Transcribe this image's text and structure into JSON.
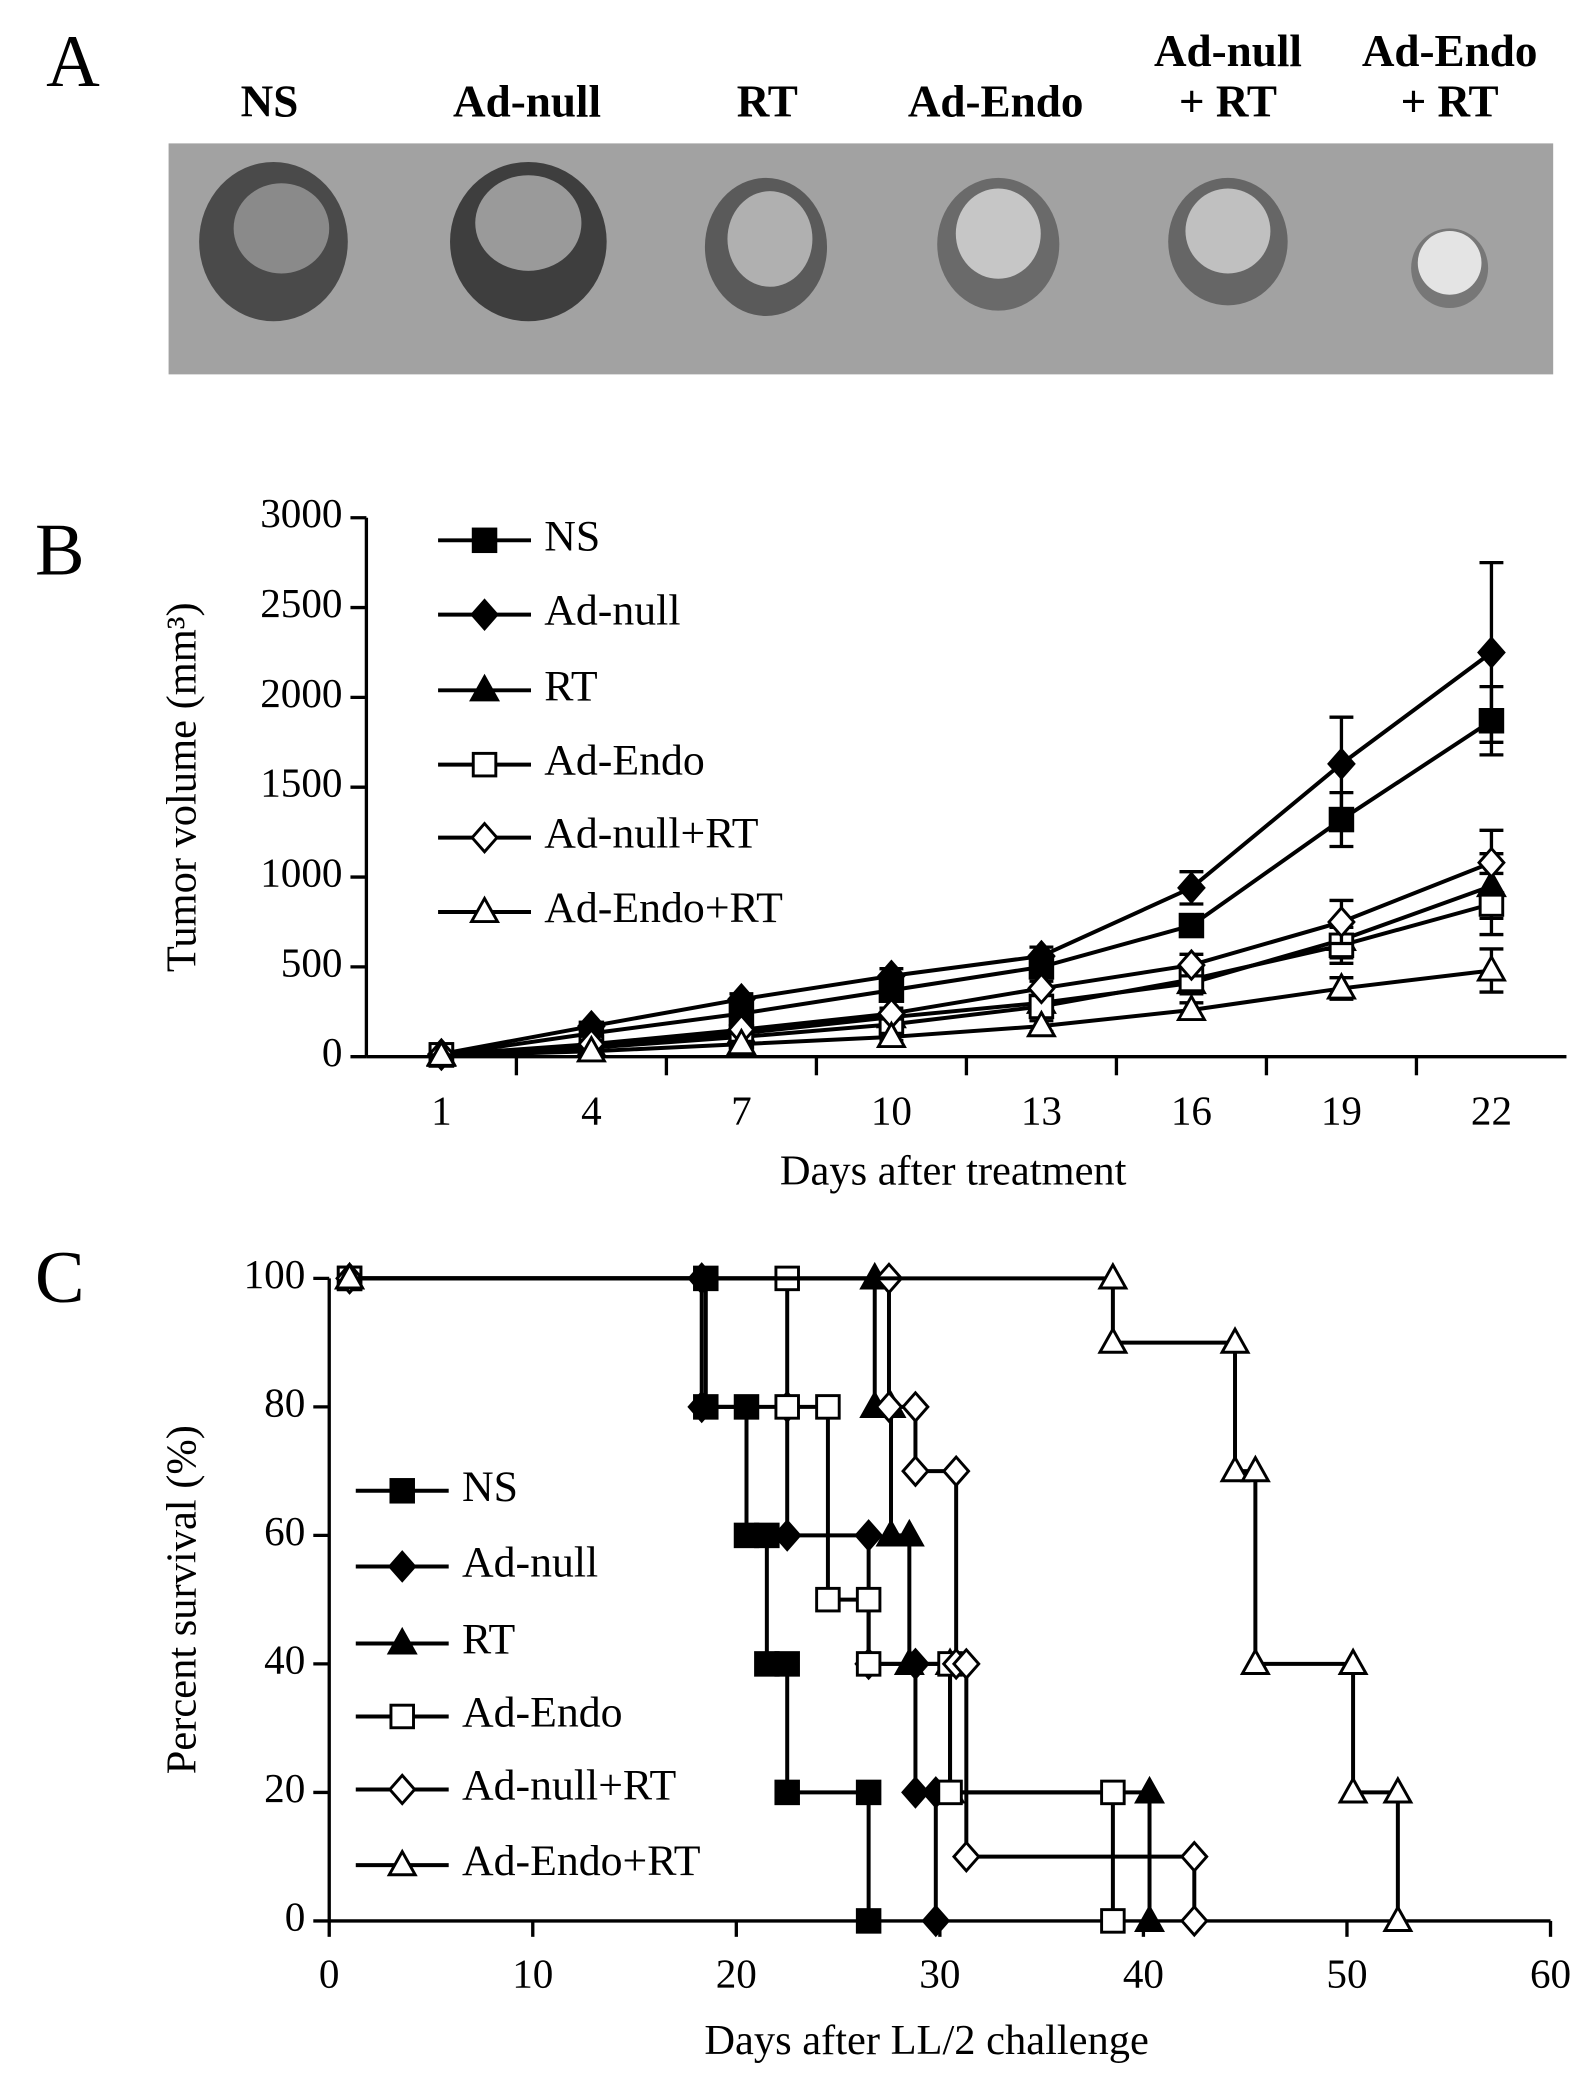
{
  "panel_a": {
    "label": "A",
    "groups": [
      [
        "NS"
      ],
      [
        "Ad-null"
      ],
      [
        "RT"
      ],
      [
        "Ad-Endo"
      ],
      [
        "Ad-null",
        "+ RT"
      ],
      [
        "Ad-Endo",
        "+ RT"
      ]
    ]
  },
  "chart_data": [
    {
      "type": "line",
      "panel_label": "B",
      "ylabel": "Tumor volume (mm³)",
      "xlabel": "Days after treatment",
      "categories": [
        1,
        4,
        7,
        10,
        13,
        16,
        19,
        22
      ],
      "ylim": [
        0,
        3000
      ],
      "yticks": [
        0,
        500,
        1000,
        1500,
        2000,
        2500,
        3000
      ],
      "series": [
        {
          "name": "NS",
          "color": "#000000",
          "marker": "square",
          "filled": true,
          "values": [
            10,
            130,
            240,
            370,
            500,
            730,
            1320,
            1870
          ],
          "errors": [
            10,
            20,
            30,
            40,
            50,
            60,
            150,
            190
          ]
        },
        {
          "name": "Ad-null",
          "color": "#000000",
          "marker": "diamond",
          "filled": true,
          "values": [
            15,
            170,
            320,
            450,
            560,
            940,
            1630,
            2250
          ],
          "errors": [
            10,
            20,
            30,
            40,
            50,
            90,
            260,
            500
          ]
        },
        {
          "name": "RT",
          "color": "#000000",
          "marker": "triangle",
          "filled": true,
          "values": [
            10,
            60,
            130,
            220,
            300,
            410,
            650,
            950
          ],
          "errors": [
            5,
            10,
            20,
            30,
            40,
            60,
            100,
            180
          ]
        },
        {
          "name": "Ad-Endo",
          "color": "#000000",
          "marker": "square",
          "filled": false,
          "values": [
            10,
            50,
            110,
            180,
            280,
            430,
            620,
            850
          ],
          "errors": [
            5,
            10,
            20,
            30,
            40,
            60,
            100,
            170
          ]
        },
        {
          "name": "Ad-null+RT",
          "color": "#000000",
          "marker": "diamond",
          "filled": false,
          "values": [
            10,
            70,
            150,
            240,
            380,
            510,
            750,
            1080
          ],
          "errors": [
            5,
            10,
            20,
            30,
            40,
            60,
            120,
            180
          ]
        },
        {
          "name": "Ad-Endo+RT",
          "color": "#000000",
          "marker": "triangle",
          "filled": false,
          "values": [
            5,
            30,
            70,
            110,
            170,
            260,
            380,
            480
          ],
          "errors": [
            5,
            10,
            15,
            20,
            30,
            40,
            60,
            120
          ]
        }
      ]
    },
    {
      "type": "line",
      "panel_label": "C",
      "ylabel": "Percent survival (%)",
      "xlabel": "Days after LL/2 challenge",
      "xlim": [
        0,
        60
      ],
      "xticks": [
        0,
        10,
        20,
        30,
        40,
        50,
        60
      ],
      "ylim": [
        0,
        100
      ],
      "yticks": [
        0,
        20,
        40,
        60,
        80,
        100
      ],
      "series": [
        {
          "name": "NS",
          "color": "#000000",
          "marker": "square",
          "filled": true,
          "x": [
            1,
            18.5,
            18.5,
            20.5,
            20.5,
            21.5,
            21.5,
            22.5,
            22.5,
            26.5,
            26.5
          ],
          "values": [
            100,
            100,
            80,
            80,
            60,
            60,
            40,
            40,
            20,
            20,
            0
          ]
        },
        {
          "name": "Ad-null",
          "color": "#000000",
          "marker": "diamond",
          "filled": true,
          "x": [
            1,
            18.3,
            18.3,
            22.5,
            22.5,
            26.5,
            26.5,
            28.8,
            28.8,
            29.8,
            29.8
          ],
          "values": [
            100,
            100,
            80,
            80,
            60,
            60,
            40,
            40,
            20,
            20,
            0
          ]
        },
        {
          "name": "RT",
          "color": "#000000",
          "marker": "triangle",
          "filled": true,
          "x": [
            1,
            26.8,
            26.8,
            27.6,
            27.6,
            28.5,
            28.5,
            30.5,
            30.5,
            40.3,
            40.3
          ],
          "values": [
            100,
            100,
            80,
            80,
            60,
            60,
            40,
            40,
            20,
            20,
            0
          ]
        },
        {
          "name": "Ad-Endo",
          "color": "#000000",
          "marker": "square",
          "filled": false,
          "x": [
            1,
            22.5,
            22.5,
            24.5,
            24.5,
            26.5,
            26.5,
            30.5,
            30.5,
            38.5,
            38.5
          ],
          "values": [
            100,
            100,
            80,
            80,
            50,
            50,
            40,
            40,
            20,
            20,
            0
          ]
        },
        {
          "name": "Ad-null+RT",
          "color": "#000000",
          "marker": "diamond",
          "filled": false,
          "x": [
            1,
            27.5,
            27.5,
            28.8,
            28.8,
            30.8,
            30.8,
            31.3,
            31.3,
            42.5,
            42.5
          ],
          "values": [
            100,
            100,
            80,
            80,
            70,
            70,
            40,
            40,
            10,
            10,
            0
          ]
        },
        {
          "name": "Ad-Endo+RT",
          "color": "#000000",
          "marker": "triangle",
          "filled": false,
          "x": [
            1,
            38.5,
            38.5,
            44.5,
            44.5,
            45.5,
            45.5,
            50.3,
            50.3,
            52.5,
            52.5
          ],
          "values": [
            100,
            100,
            90,
            90,
            70,
            70,
            40,
            40,
            20,
            20,
            0
          ]
        }
      ]
    }
  ]
}
